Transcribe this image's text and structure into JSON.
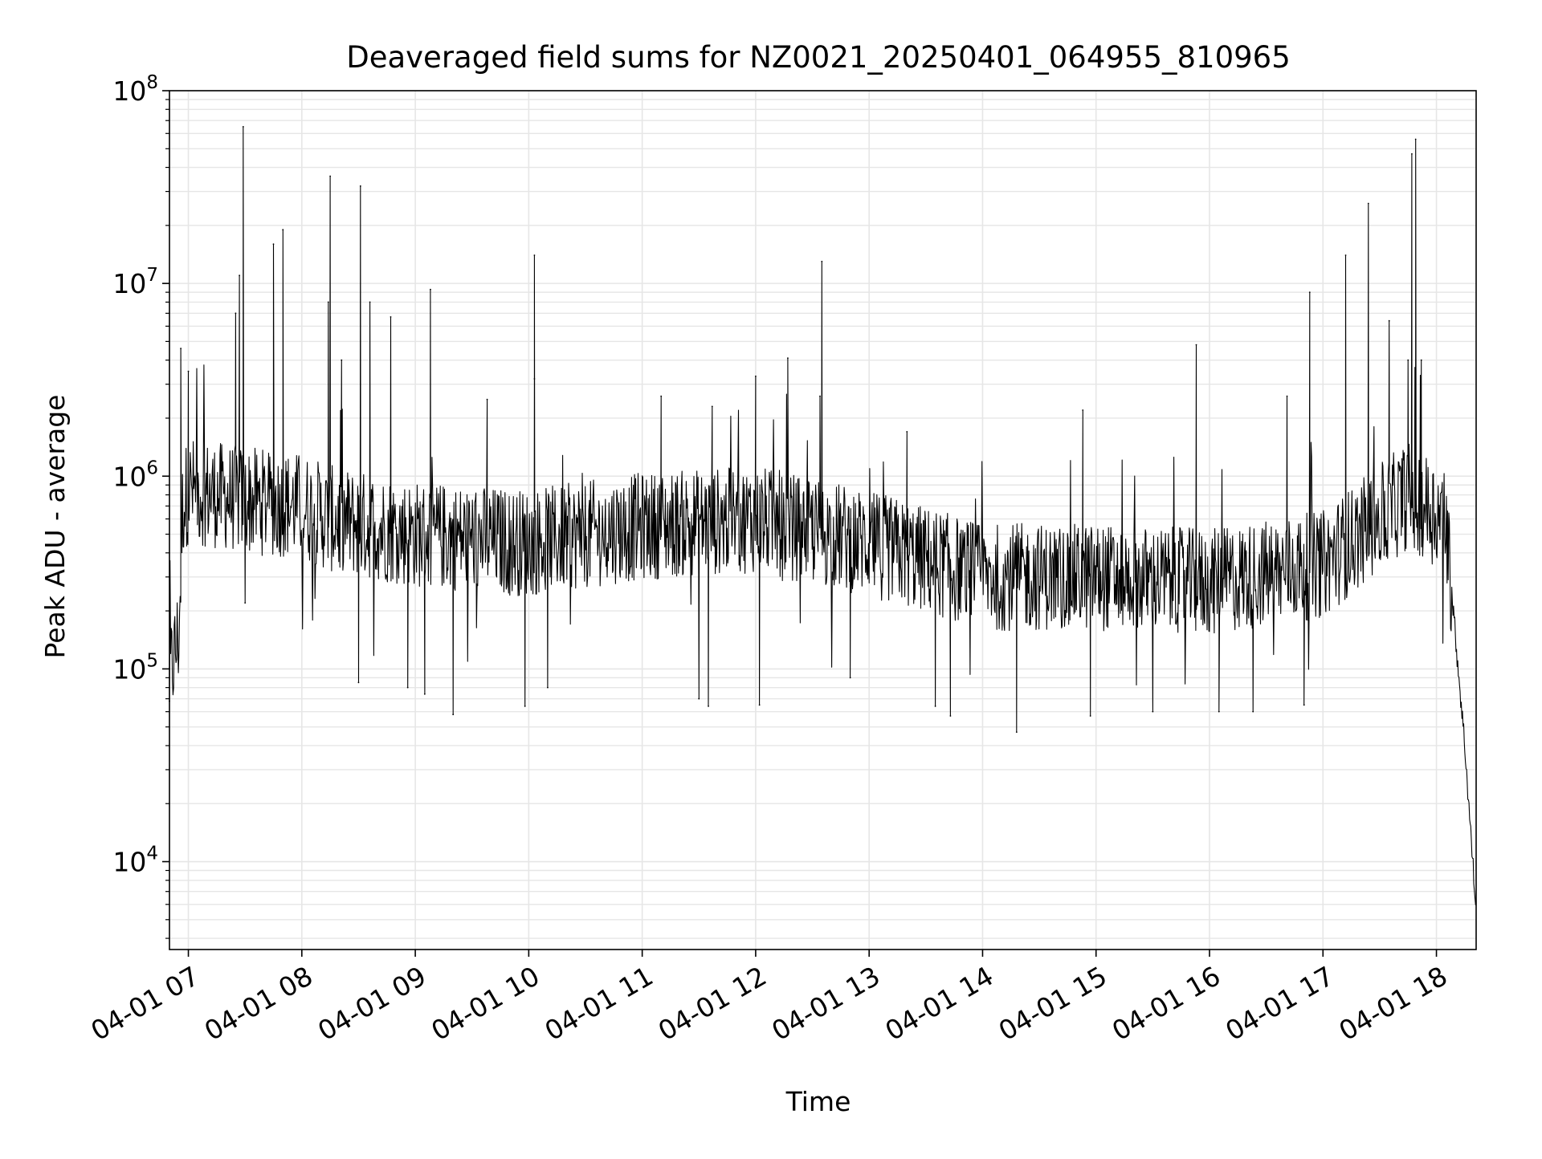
{
  "chart_data": {
    "type": "line",
    "title": "Deaveraged field sums for NZ0021_20250401_064955_810965",
    "xlabel": "Time",
    "ylabel": "Peak ADU - average",
    "x_range": [
      "2025-04-01 06:50",
      "2025-04-01 18:21"
    ],
    "ylim": [
      3500,
      100000000
    ],
    "y_scale": "log",
    "grid": true,
    "grid_color": "#e6e6e6",
    "line_color": "#000000",
    "x_ticks": [
      {
        "value": "2025-04-01 07:00",
        "label": "04-01 07"
      },
      {
        "value": "2025-04-01 08:00",
        "label": "04-01 08"
      },
      {
        "value": "2025-04-01 09:00",
        "label": "04-01 09"
      },
      {
        "value": "2025-04-01 10:00",
        "label": "04-01 10"
      },
      {
        "value": "2025-04-01 11:00",
        "label": "04-01 11"
      },
      {
        "value": "2025-04-01 12:00",
        "label": "04-01 12"
      },
      {
        "value": "2025-04-01 13:00",
        "label": "04-01 13"
      },
      {
        "value": "2025-04-01 14:00",
        "label": "04-01 14"
      },
      {
        "value": "2025-04-01 15:00",
        "label": "04-01 15"
      },
      {
        "value": "2025-04-01 16:00",
        "label": "04-01 16"
      },
      {
        "value": "2025-04-01 17:00",
        "label": "04-01 17"
      },
      {
        "value": "2025-04-01 18:00",
        "label": "04-01 18"
      }
    ],
    "y_ticks": [
      {
        "value": 10000,
        "base": "10",
        "exp": "4"
      },
      {
        "value": 100000,
        "base": "10",
        "exp": "5"
      },
      {
        "value": 1000000,
        "base": "10",
        "exp": "6"
      },
      {
        "value": 10000000,
        "base": "10",
        "exp": "7"
      },
      {
        "value": 100000000,
        "base": "10",
        "exp": "8"
      }
    ],
    "series": [
      {
        "baseline": [
          {
            "x": "2025-04-01 06:50",
            "y": 90000
          },
          {
            "x": "2025-04-01 06:55",
            "y": 150000
          },
          {
            "x": "2025-04-01 06:57",
            "y": 700000
          },
          {
            "x": "2025-04-01 07:00",
            "y": 850000
          },
          {
            "x": "2025-04-01 07:30",
            "y": 750000
          },
          {
            "x": "2025-04-01 08:00",
            "y": 700000
          },
          {
            "x": "2025-04-01 08:15",
            "y": 600000
          },
          {
            "x": "2025-04-01 09:00",
            "y": 500000
          },
          {
            "x": "2025-04-01 10:00",
            "y": 450000
          },
          {
            "x": "2025-04-01 11:00",
            "y": 550000
          },
          {
            "x": "2025-04-01 12:00",
            "y": 600000
          },
          {
            "x": "2025-04-01 13:00",
            "y": 450000
          },
          {
            "x": "2025-04-01 14:00",
            "y": 300000
          },
          {
            "x": "2025-04-01 15:00",
            "y": 300000
          },
          {
            "x": "2025-04-01 16:00",
            "y": 280000
          },
          {
            "x": "2025-04-01 17:00",
            "y": 350000
          },
          {
            "x": "2025-04-01 17:45",
            "y": 800000
          },
          {
            "x": "2025-04-01 18:05",
            "y": 600000
          },
          {
            "x": "2025-04-01 18:10",
            "y": 150000
          },
          {
            "x": "2025-04-01 18:15",
            "y": 40000
          },
          {
            "x": "2025-04-01 18:21",
            "y": 5500
          }
        ],
        "peaks": [
          {
            "x": "2025-04-01 06:56",
            "y": 4600000
          },
          {
            "x": "2025-04-01 07:00",
            "y": 3500000
          },
          {
            "x": "2025-04-01 07:25",
            "y": 7000000
          },
          {
            "x": "2025-04-01 07:27",
            "y": 11000000
          },
          {
            "x": "2025-04-01 07:29",
            "y": 65000000
          },
          {
            "x": "2025-04-01 07:45",
            "y": 16000000
          },
          {
            "x": "2025-04-01 07:50",
            "y": 19000000
          },
          {
            "x": "2025-04-01 08:14",
            "y": 8000000
          },
          {
            "x": "2025-04-01 08:15",
            "y": 36000000
          },
          {
            "x": "2025-04-01 08:21",
            "y": 4000000
          },
          {
            "x": "2025-04-01 08:31",
            "y": 32000000
          },
          {
            "x": "2025-04-01 08:36",
            "y": 8000000
          },
          {
            "x": "2025-04-01 08:47",
            "y": 6700000
          },
          {
            "x": "2025-04-01 09:08",
            "y": 9300000
          },
          {
            "x": "2025-04-01 09:38",
            "y": 2500000
          },
          {
            "x": "2025-04-01 10:03",
            "y": 3200000
          },
          {
            "x": "2025-04-01 10:03",
            "y": 14000000
          },
          {
            "x": "2025-04-01 11:10",
            "y": 2600000
          },
          {
            "x": "2025-04-01 11:37",
            "y": 2300000
          },
          {
            "x": "2025-04-01 12:00",
            "y": 3300000
          },
          {
            "x": "2025-04-01 12:17",
            "y": 4100000
          },
          {
            "x": "2025-04-01 12:34",
            "y": 2600000
          },
          {
            "x": "2025-04-01 12:35",
            "y": 13000000
          },
          {
            "x": "2025-04-01 13:20",
            "y": 1700000
          },
          {
            "x": "2025-04-01 14:53",
            "y": 2200000
          },
          {
            "x": "2025-04-01 15:53",
            "y": 4800000
          },
          {
            "x": "2025-04-01 16:41",
            "y": 2600000
          },
          {
            "x": "2025-04-01 16:53",
            "y": 9000000
          },
          {
            "x": "2025-04-01 17:12",
            "y": 14000000
          },
          {
            "x": "2025-04-01 17:24",
            "y": 26000000
          },
          {
            "x": "2025-04-01 17:35",
            "y": 6400000
          },
          {
            "x": "2025-04-01 17:45",
            "y": 4000000
          },
          {
            "x": "2025-04-01 17:47",
            "y": 47000000
          },
          {
            "x": "2025-04-01 17:49",
            "y": 56000000
          },
          {
            "x": "2025-04-01 17:52",
            "y": 4000000
          }
        ],
        "dips": [
          {
            "x": "2025-04-01 06:50",
            "y": 68000
          },
          {
            "x": "2025-04-01 07:30",
            "y": 220000
          },
          {
            "x": "2025-04-01 08:30",
            "y": 85000
          },
          {
            "x": "2025-04-01 08:56",
            "y": 80000
          },
          {
            "x": "2025-04-01 09:05",
            "y": 74000
          },
          {
            "x": "2025-04-01 09:20",
            "y": 58000
          },
          {
            "x": "2025-04-01 09:58",
            "y": 64000
          },
          {
            "x": "2025-04-01 10:10",
            "y": 80000
          },
          {
            "x": "2025-04-01 11:30",
            "y": 70000
          },
          {
            "x": "2025-04-01 11:35",
            "y": 64000
          },
          {
            "x": "2025-04-01 12:02",
            "y": 65000
          },
          {
            "x": "2025-04-01 12:50",
            "y": 90000
          },
          {
            "x": "2025-04-01 13:35",
            "y": 64000
          },
          {
            "x": "2025-04-01 13:43",
            "y": 57000
          },
          {
            "x": "2025-04-01 14:18",
            "y": 47000
          },
          {
            "x": "2025-04-01 14:57",
            "y": 57000
          },
          {
            "x": "2025-04-01 15:30",
            "y": 60000
          },
          {
            "x": "2025-04-01 16:05",
            "y": 60000
          },
          {
            "x": "2025-04-01 16:23",
            "y": 60000
          },
          {
            "x": "2025-04-01 16:50",
            "y": 65000
          }
        ]
      }
    ]
  }
}
